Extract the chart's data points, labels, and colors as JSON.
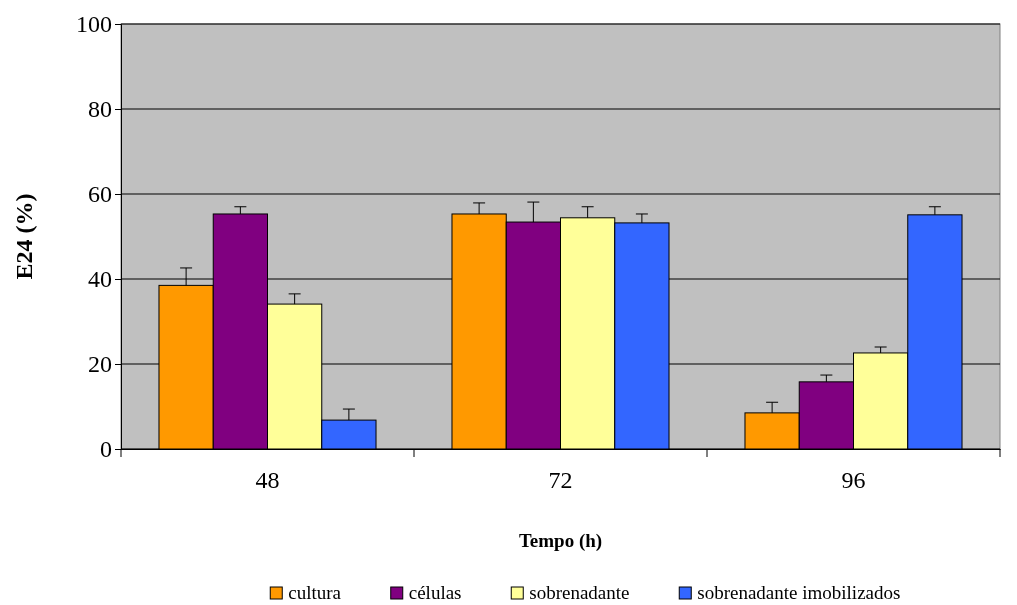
{
  "chart_data": {
    "type": "bar",
    "xlabel": "Tempo (h)",
    "ylabel": "E24 (%)",
    "categories": [
      "48",
      "72",
      "96"
    ],
    "ylim": [
      0,
      100
    ],
    "yticks": [
      0,
      20,
      40,
      60,
      80,
      100
    ],
    "grid": "y",
    "legend": "bottom",
    "series": [
      {
        "name": "cultura",
        "color": "#ff9900",
        "values": [
          38.5,
          55.3,
          8.5
        ],
        "errors": [
          [
            38.5,
            42.6
          ],
          [
            55.3,
            57.9
          ],
          [
            8.5,
            11
          ]
        ]
      },
      {
        "name": "células",
        "color": "#800080",
        "values": [
          55.3,
          53.4,
          15.8
        ],
        "errors": [
          [
            55.3,
            57
          ],
          [
            53.4,
            58.1
          ],
          [
            15.8,
            17.4
          ]
        ]
      },
      {
        "name": "sobrenadante",
        "color": "#ffff99",
        "values": [
          34.1,
          54.4,
          22.6
        ],
        "errors": [
          [
            34.1,
            36.5
          ],
          [
            54.4,
            57
          ],
          [
            22.6,
            24
          ]
        ]
      },
      {
        "name": "sobrenadante imobilizados",
        "color": "#3366ff",
        "values": [
          6.8,
          53.2,
          55.1
        ],
        "errors": [
          [
            6.8,
            9.4
          ],
          [
            53.2,
            55.3
          ],
          [
            55.1,
            57
          ]
        ]
      }
    ]
  }
}
